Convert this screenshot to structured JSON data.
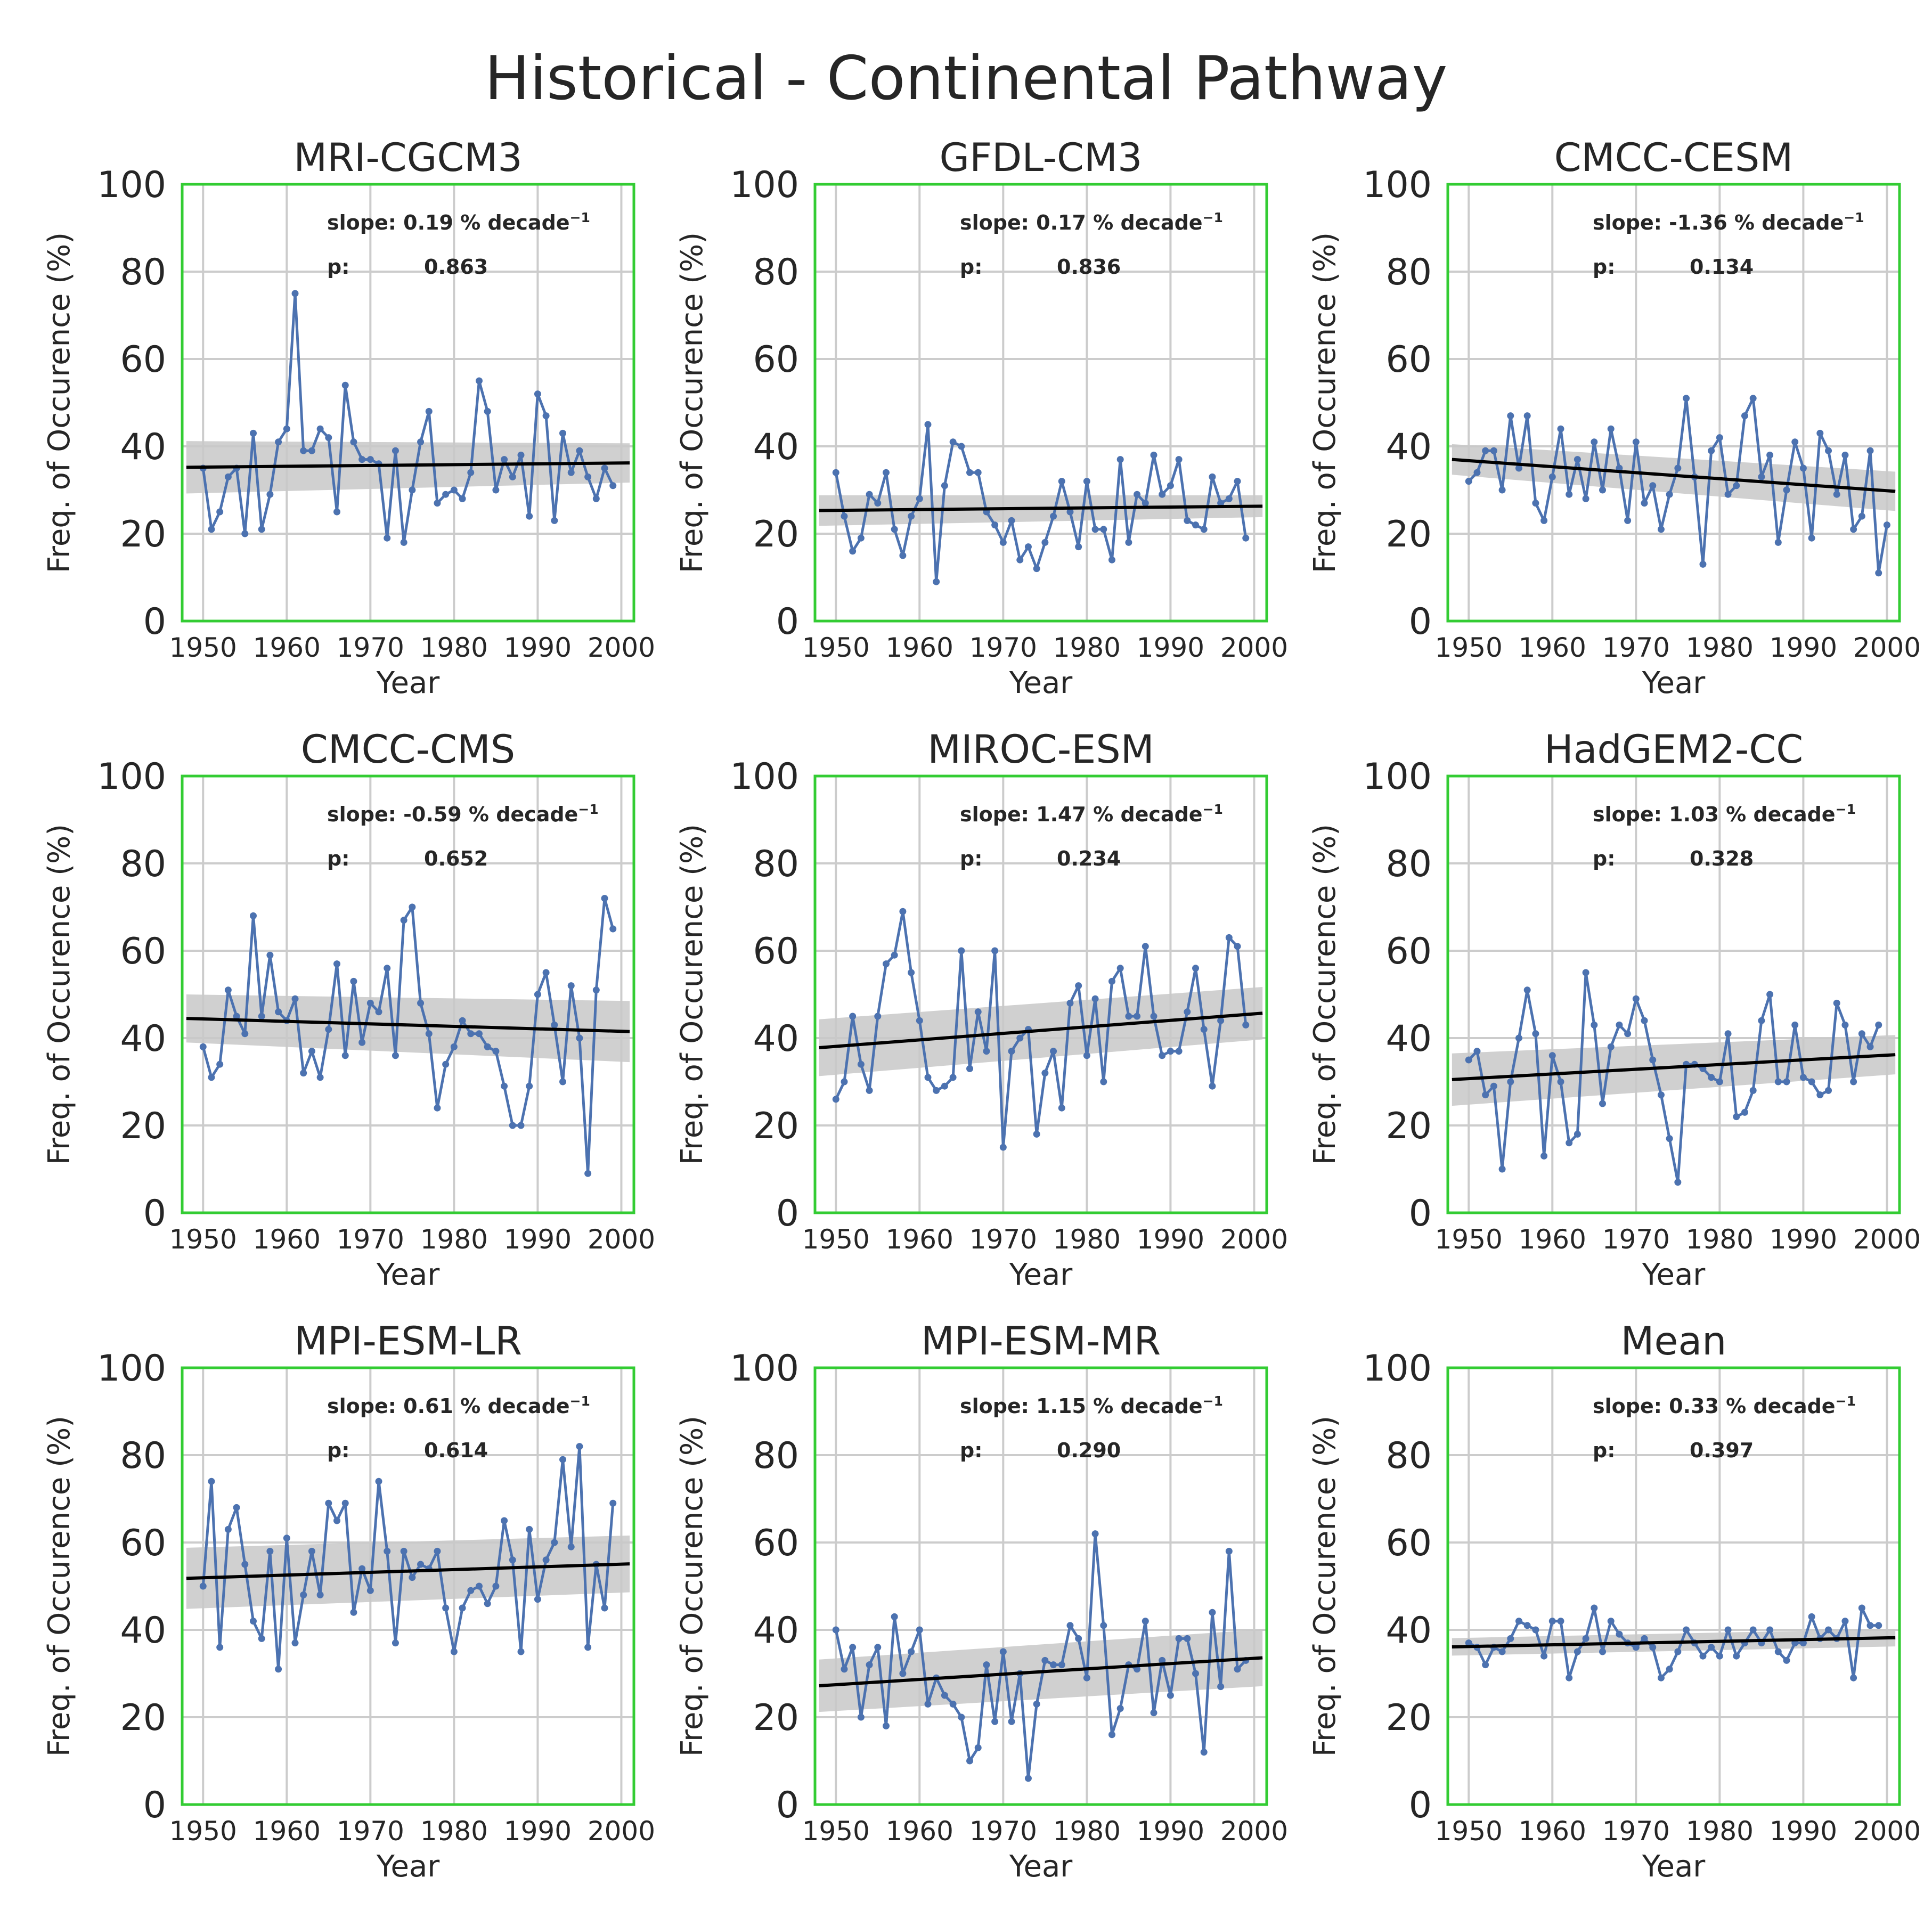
{
  "figure": {
    "title": "Historical - Continental Pathway"
  },
  "colors": {
    "series": "#4c72b0",
    "trend": "#000000",
    "band": "#c8c8c8",
    "frame": "#33cc33",
    "grid": "#cccccc"
  },
  "chart_data": [
    {
      "type": "line",
      "title": "MRI-CGCM3",
      "xlabel": "Year",
      "ylabel": "Freq. of Occurence (%)",
      "xlim": [
        1947.5,
        2001.5
      ],
      "ylim": [
        0,
        100
      ],
      "xticks": [
        1950,
        1960,
        1970,
        1980,
        1990,
        2000
      ],
      "yticks": [
        0,
        20,
        40,
        60,
        80,
        100
      ],
      "grid": true,
      "slope_label": "slope: 0.19 % decade",
      "slope_unit_exp": "−1",
      "p_label": "p:",
      "p_value": "0.863",
      "x_start": 1950,
      "values": [
        35,
        21,
        25,
        33,
        35,
        20,
        43,
        21,
        29,
        41,
        44,
        75,
        39,
        39,
        44,
        42,
        25,
        54,
        41,
        37,
        37,
        36,
        19,
        39,
        18,
        30,
        41,
        48,
        27,
        29,
        30,
        28,
        34,
        55,
        48,
        30,
        37,
        33,
        38,
        24,
        52,
        47,
        23,
        43,
        34,
        39,
        33,
        28,
        35,
        31
      ],
      "trend": [
        35.2,
        36.2
      ],
      "band_halfwidth": [
        6.0,
        4.5
      ]
    },
    {
      "type": "line",
      "title": "GFDL-CM3",
      "xlabel": "Year",
      "ylabel": "Freq. of Occurence (%)",
      "xlim": [
        1947.5,
        2001.5
      ],
      "ylim": [
        0,
        100
      ],
      "xticks": [
        1950,
        1960,
        1970,
        1980,
        1990,
        2000
      ],
      "yticks": [
        0,
        20,
        40,
        60,
        80,
        100
      ],
      "grid": true,
      "slope_label": "slope: 0.17 % decade",
      "slope_unit_exp": "−1",
      "p_label": "p:",
      "p_value": "0.836",
      "x_start": 1950,
      "values": [
        34,
        24,
        16,
        19,
        29,
        27,
        34,
        21,
        15,
        24,
        28,
        45,
        9,
        31,
        41,
        40,
        34,
        34,
        25,
        22,
        18,
        23,
        14,
        17,
        12,
        18,
        24,
        32,
        25,
        17,
        32,
        21,
        21,
        14,
        37,
        18,
        29,
        27,
        38,
        29,
        31,
        37,
        23,
        22,
        21,
        33,
        27,
        28,
        32,
        19
      ],
      "trend": [
        25.3,
        26.3
      ],
      "band_halfwidth": [
        3.5,
        2.5
      ]
    },
    {
      "type": "line",
      "title": "CMCC-CESM",
      "xlabel": "Year",
      "ylabel": "Freq. of Occurence (%)",
      "xlim": [
        1947.5,
        2001.5
      ],
      "ylim": [
        0,
        100
      ],
      "xticks": [
        1950,
        1960,
        1970,
        1980,
        1990,
        2000
      ],
      "yticks": [
        0,
        20,
        40,
        60,
        80,
        100
      ],
      "grid": true,
      "slope_label": "slope: -1.36 % decade",
      "slope_unit_exp": "−1",
      "p_label": "p:",
      "p_value": "0.134",
      "x_start": 1950,
      "values": [
        32,
        34,
        39,
        39,
        30,
        47,
        35,
        47,
        27,
        23,
        33,
        44,
        29,
        37,
        28,
        41,
        30,
        44,
        35,
        23,
        41,
        27,
        31,
        21,
        29,
        35,
        51,
        33,
        13,
        39,
        42,
        29,
        31,
        47,
        51,
        33,
        38,
        18,
        30,
        41,
        35,
        19,
        43,
        39,
        29,
        38,
        21,
        24,
        39,
        11,
        22
      ],
      "trend": [
        37.0,
        29.7
      ],
      "band_halfwidth": [
        3.5,
        4.5
      ]
    },
    {
      "type": "line",
      "title": "CMCC-CMS",
      "xlabel": "Year",
      "ylabel": "Freq. of Occurence (%)",
      "xlim": [
        1947.5,
        2001.5
      ],
      "ylim": [
        0,
        100
      ],
      "xticks": [
        1950,
        1960,
        1970,
        1980,
        1990,
        2000
      ],
      "yticks": [
        0,
        20,
        40,
        60,
        80,
        100
      ],
      "grid": true,
      "slope_label": "slope: -0.59 % decade",
      "slope_unit_exp": "−1",
      "p_label": "p:",
      "p_value": "0.652",
      "x_start": 1950,
      "values": [
        38,
        31,
        34,
        51,
        45,
        41,
        68,
        45,
        59,
        46,
        44,
        49,
        32,
        37,
        31,
        42,
        57,
        36,
        53,
        39,
        48,
        46,
        56,
        36,
        67,
        70,
        48,
        41,
        24,
        34,
        38,
        44,
        41,
        41,
        38,
        37,
        29,
        20,
        20,
        29,
        50,
        55,
        43,
        30,
        52,
        40,
        9,
        51,
        72,
        65
      ],
      "trend": [
        44.5,
        41.5
      ],
      "band_halfwidth": [
        5.5,
        7.0
      ]
    },
    {
      "type": "line",
      "title": "MIROC-ESM",
      "xlabel": "Year",
      "ylabel": "Freq. of Occurence (%)",
      "xlim": [
        1947.5,
        2001.5
      ],
      "ylim": [
        0,
        100
      ],
      "xticks": [
        1950,
        1960,
        1970,
        1980,
        1990,
        2000
      ],
      "yticks": [
        0,
        20,
        40,
        60,
        80,
        100
      ],
      "grid": true,
      "slope_label": "slope: 1.47 % decade",
      "slope_unit_exp": "−1",
      "p_label": "p:",
      "p_value": "0.234",
      "x_start": 1950,
      "values": [
        26,
        30,
        45,
        34,
        28,
        45,
        57,
        59,
        69,
        55,
        44,
        31,
        28,
        29,
        31,
        60,
        33,
        46,
        37,
        60,
        15,
        37,
        40,
        42,
        18,
        32,
        37,
        24,
        48,
        52,
        36,
        49,
        30,
        53,
        56,
        45,
        45,
        61,
        45,
        36,
        37,
        37,
        46,
        56,
        42,
        29,
        44,
        63,
        61,
        43
      ],
      "trend": [
        37.8,
        45.7
      ],
      "band_halfwidth": [
        6.5,
        6.0
      ]
    },
    {
      "type": "line",
      "title": "HadGEM2-CC",
      "xlabel": "Year",
      "ylabel": "Freq. of Occurence (%)",
      "xlim": [
        1947.5,
        2001.5
      ],
      "ylim": [
        0,
        100
      ],
      "xticks": [
        1950,
        1960,
        1970,
        1980,
        1990,
        2000
      ],
      "yticks": [
        0,
        20,
        40,
        60,
        80,
        100
      ],
      "grid": true,
      "slope_label": "slope: 1.03 % decade",
      "slope_unit_exp": "−1",
      "p_label": "p:",
      "p_value": "0.328",
      "x_start": 1950,
      "values": [
        35,
        37,
        27,
        29,
        10,
        30,
        40,
        51,
        41,
        13,
        36,
        30,
        16,
        18,
        55,
        43,
        25,
        38,
        43,
        41,
        49,
        44,
        35,
        27,
        17,
        7,
        34,
        34,
        33,
        31,
        30,
        41,
        22,
        23,
        28,
        44,
        50,
        30,
        30,
        43,
        31,
        30,
        27,
        28,
        48,
        43,
        30,
        41,
        38,
        43
      ],
      "trend": [
        30.5,
        36.2
      ],
      "band_halfwidth": [
        6.0,
        4.5
      ]
    },
    {
      "type": "line",
      "title": "MPI-ESM-LR",
      "xlabel": "Year",
      "ylabel": "Freq. of Occurence (%)",
      "xlim": [
        1947.5,
        2001.5
      ],
      "ylim": [
        0,
        100
      ],
      "xticks": [
        1950,
        1960,
        1970,
        1980,
        1990,
        2000
      ],
      "yticks": [
        0,
        20,
        40,
        60,
        80,
        100
      ],
      "grid": true,
      "slope_label": "slope: 0.61 % decade",
      "slope_unit_exp": "−1",
      "p_label": "p:",
      "p_value": "0.614",
      "x_start": 1950,
      "values": [
        50,
        74,
        36,
        63,
        68,
        55,
        42,
        38,
        58,
        31,
        61,
        37,
        48,
        58,
        48,
        69,
        65,
        69,
        44,
        54,
        49,
        74,
        58,
        37,
        58,
        52,
        55,
        54,
        58,
        45,
        35,
        45,
        49,
        50,
        46,
        50,
        65,
        56,
        35,
        63,
        47,
        56,
        60,
        79,
        59,
        82,
        36,
        55,
        45,
        69
      ],
      "trend": [
        51.8,
        55.1
      ],
      "band_halfwidth": [
        7.0,
        6.5
      ]
    },
    {
      "type": "line",
      "title": "MPI-ESM-MR",
      "xlabel": "Year",
      "ylabel": "Freq. of Occurence (%)",
      "xlim": [
        1947.5,
        2001.5
      ],
      "ylim": [
        0,
        100
      ],
      "xticks": [
        1950,
        1960,
        1970,
        1980,
        1990,
        2000
      ],
      "yticks": [
        0,
        20,
        40,
        60,
        80,
        100
      ],
      "grid": true,
      "slope_label": "slope: 1.15 % decade",
      "slope_unit_exp": "−1",
      "p_label": "p:",
      "p_value": "0.290",
      "x_start": 1950,
      "values": [
        40,
        31,
        36,
        20,
        32,
        36,
        18,
        43,
        30,
        35,
        40,
        23,
        29,
        25,
        23,
        20,
        10,
        13,
        32,
        19,
        35,
        19,
        30,
        6,
        23,
        33,
        32,
        32,
        41,
        38,
        29,
        62,
        41,
        16,
        22,
        32,
        31,
        42,
        21,
        33,
        25,
        38,
        38,
        30,
        12,
        44,
        27,
        58,
        31,
        33
      ],
      "trend": [
        27.2,
        33.6
      ],
      "band_halfwidth": [
        6.0,
        6.5
      ]
    },
    {
      "type": "line",
      "title": "Mean",
      "xlabel": "Year",
      "ylabel": "Freq. of Occurence (%)",
      "xlim": [
        1947.5,
        2001.5
      ],
      "ylim": [
        0,
        100
      ],
      "xticks": [
        1950,
        1960,
        1970,
        1980,
        1990,
        2000
      ],
      "yticks": [
        0,
        20,
        40,
        60,
        80,
        100
      ],
      "grid": true,
      "slope_label": "slope: 0.33 % decade",
      "slope_unit_exp": "−1",
      "p_label": "p:",
      "p_value": "0.397",
      "x_start": 1950,
      "values": [
        37,
        36,
        32,
        36,
        35,
        38,
        42,
        41,
        40,
        34,
        42,
        42,
        29,
        35,
        38,
        45,
        35,
        42,
        39,
        37,
        36,
        38,
        36,
        29,
        31,
        35,
        40,
        37,
        34,
        36,
        34,
        40,
        34,
        37,
        40,
        37,
        40,
        35,
        33,
        37,
        37,
        43,
        38,
        40,
        38,
        42,
        29,
        45,
        41,
        41
      ],
      "trend": [
        36.1,
        38.2
      ],
      "band_halfwidth": [
        2.0,
        2.0
      ]
    }
  ]
}
